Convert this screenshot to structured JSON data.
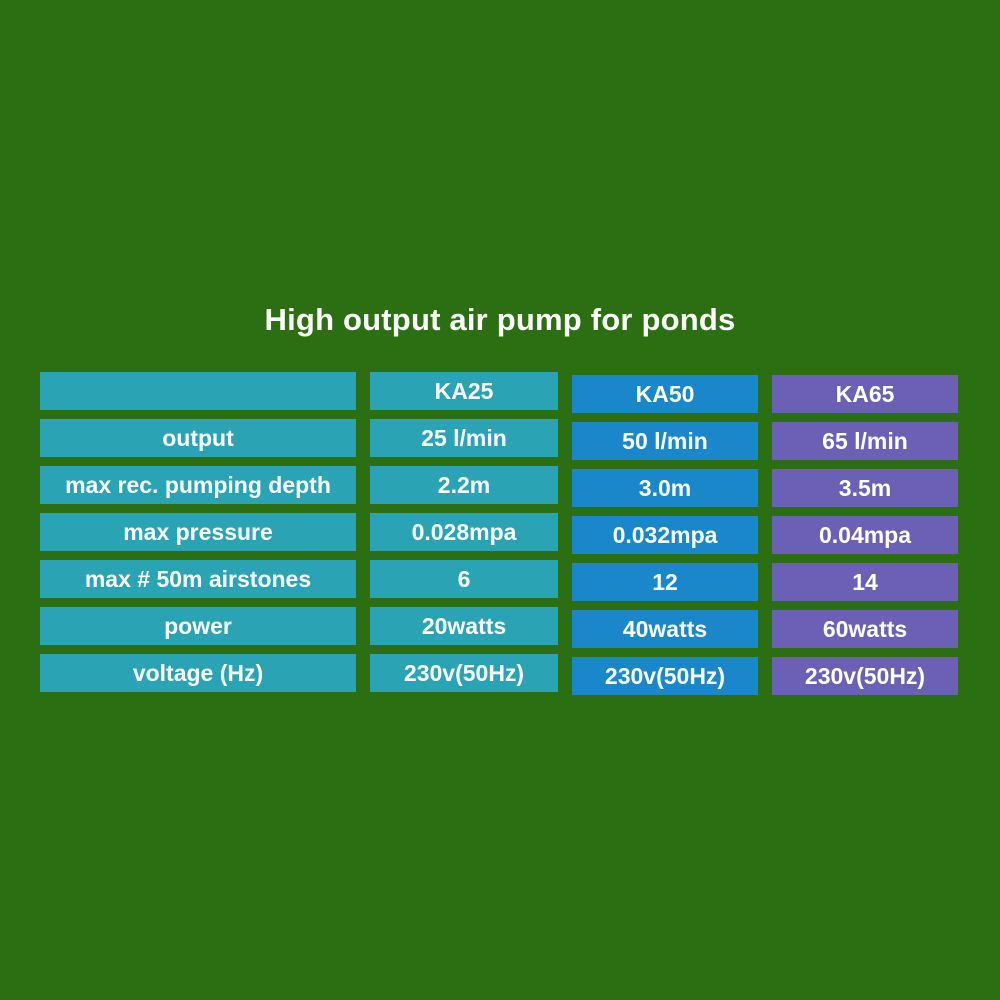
{
  "title": "High output air pump for ponds",
  "colors": {
    "background": "#2c6f12",
    "teal": "#2aa4b5",
    "blue": "#1987c9",
    "purple": "#6c60b6",
    "text": "#ffffff"
  },
  "chart_data": {
    "type": "table",
    "title": "High output air pump for ponds",
    "columns": [
      "",
      "KA25",
      "KA50",
      "KA65"
    ],
    "rows": [
      [
        "output",
        "25 l/min",
        "50 l/min",
        "65 l/min"
      ],
      [
        "max rec. pumping depth",
        "2.2m",
        "3.0m",
        "3.5m"
      ],
      [
        "max pressure",
        "0.028mpa",
        "0.032mpa",
        "0.04mpa"
      ],
      [
        "max # 50m airstones",
        "6",
        "12",
        "14"
      ],
      [
        "power",
        "20watts",
        "40watts",
        "60watts"
      ],
      [
        "voltage (Hz)",
        "230v(50Hz)",
        "230v(50Hz)",
        "230v(50Hz)"
      ]
    ],
    "column_colors": [
      "teal",
      "teal",
      "blue",
      "purple"
    ],
    "legend_position": "none",
    "grid": false
  }
}
